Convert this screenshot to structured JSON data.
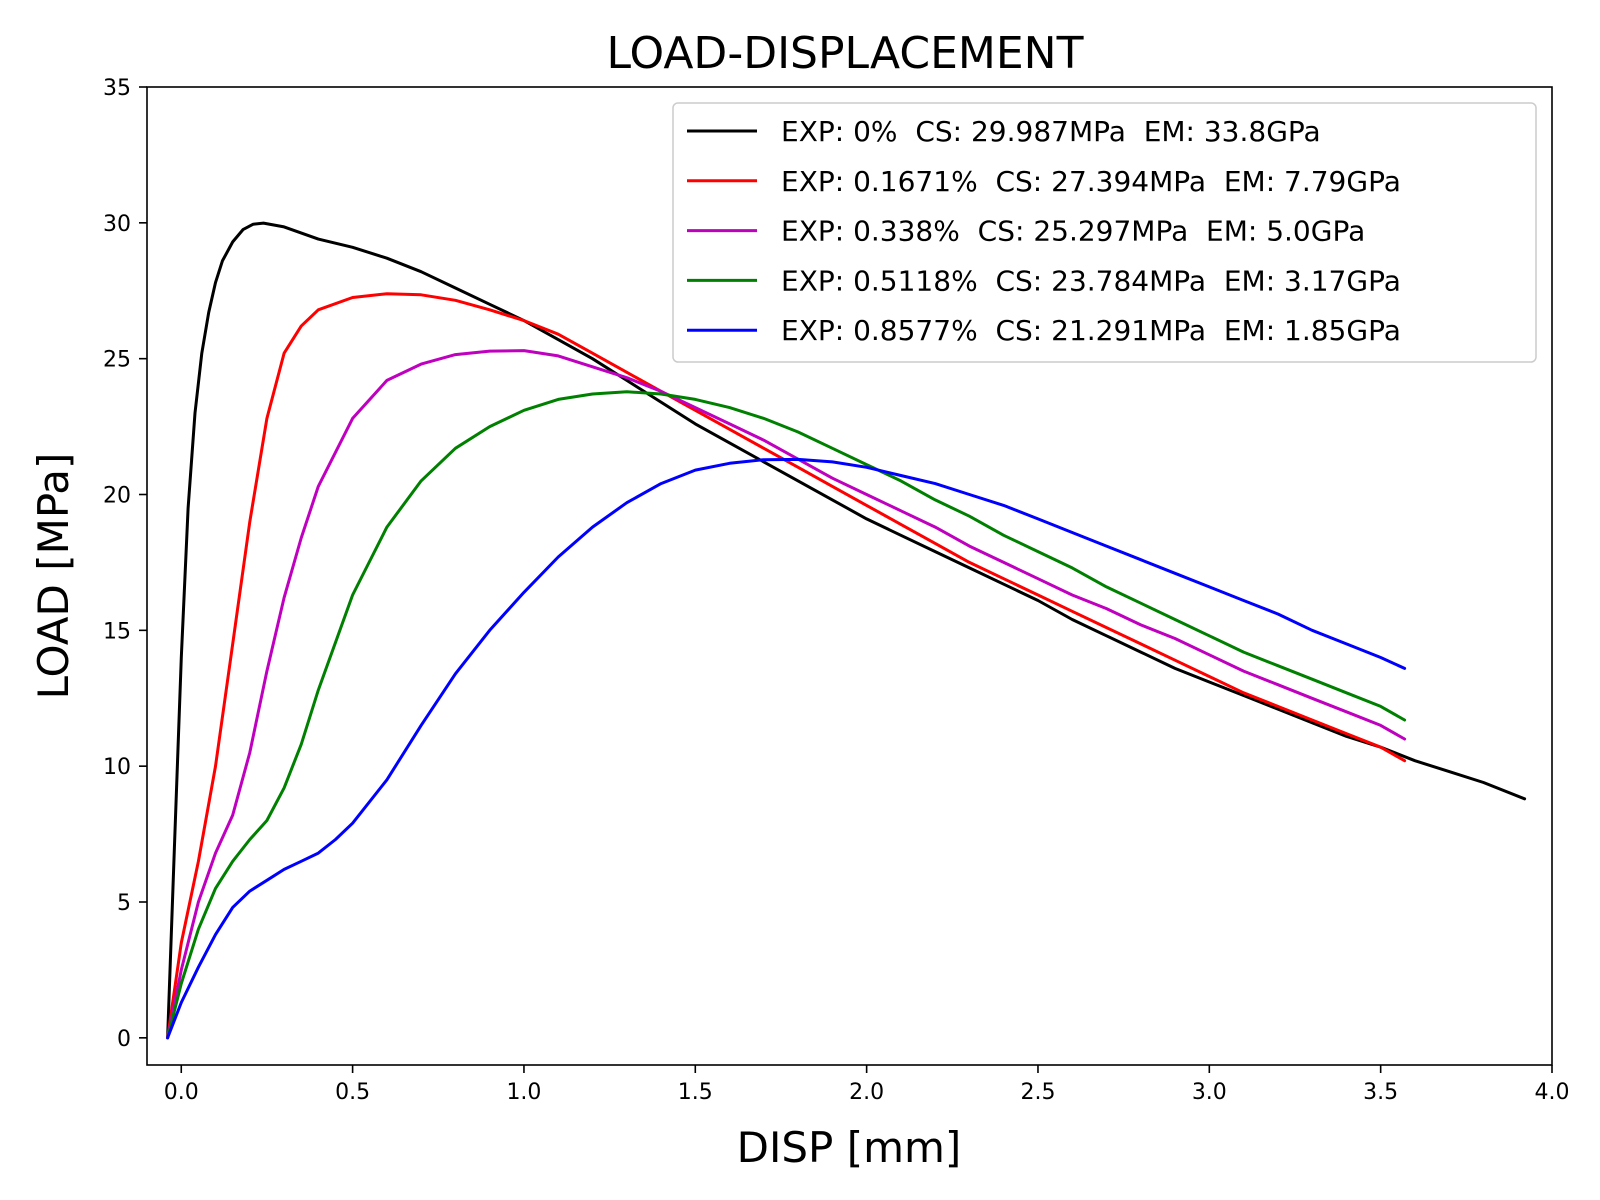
{
  "chart_data": {
    "type": "line",
    "title": "LOAD-DISPLACEMENT",
    "xlabel": "DISP [mm]",
    "ylabel": "LOAD [MPa]",
    "xlim": [
      -0.1,
      4.0
    ],
    "ylim": [
      -1,
      35
    ],
    "xticks": [
      "0.0",
      "0.5",
      "1.0",
      "1.5",
      "2.0",
      "2.5",
      "3.0",
      "3.5",
      "4.0"
    ],
    "yticks": [
      "0",
      "5",
      "10",
      "15",
      "20",
      "25",
      "30",
      "35"
    ],
    "grid": false,
    "legend_position": "top-right",
    "series": [
      {
        "name": "EXP: 0%  CS: 29.987MPa  EM: 33.8GPa",
        "color": "#000000",
        "x": [
          -0.04,
          -0.02,
          0.0,
          0.02,
          0.04,
          0.06,
          0.08,
          0.1,
          0.12,
          0.15,
          0.18,
          0.21,
          0.24,
          0.3,
          0.4,
          0.5,
          0.6,
          0.7,
          0.8,
          0.9,
          1.0,
          1.1,
          1.2,
          1.3,
          1.4,
          1.5,
          1.6,
          1.7,
          1.8,
          1.9,
          2.0,
          2.1,
          2.2,
          2.3,
          2.4,
          2.5,
          2.6,
          2.7,
          2.8,
          2.9,
          3.0,
          3.1,
          3.2,
          3.3,
          3.4,
          3.5,
          3.6,
          3.7,
          3.8,
          3.92
        ],
        "y": [
          0,
          7,
          14,
          19.5,
          23,
          25.2,
          26.7,
          27.8,
          28.6,
          29.3,
          29.75,
          29.95,
          29.99,
          29.85,
          29.4,
          29.1,
          28.7,
          28.2,
          27.6,
          27.0,
          26.4,
          25.7,
          25.0,
          24.2,
          23.4,
          22.6,
          21.9,
          21.2,
          20.5,
          19.8,
          19.1,
          18.5,
          17.9,
          17.3,
          16.7,
          16.1,
          15.4,
          14.8,
          14.2,
          13.6,
          13.1,
          12.6,
          12.1,
          11.6,
          11.1,
          10.7,
          10.2,
          9.8,
          9.4,
          8.8
        ]
      },
      {
        "name": "EXP: 0.1671%  CS: 27.394MPa  EM: 7.79GPa",
        "color": "#ff0000",
        "x": [
          -0.04,
          0.0,
          0.05,
          0.1,
          0.15,
          0.2,
          0.25,
          0.3,
          0.35,
          0.4,
          0.5,
          0.6,
          0.7,
          0.8,
          0.9,
          1.0,
          1.1,
          1.2,
          1.3,
          1.4,
          1.5,
          1.6,
          1.7,
          1.8,
          1.9,
          2.0,
          2.1,
          2.2,
          2.3,
          2.4,
          2.5,
          2.6,
          2.7,
          2.8,
          2.9,
          3.0,
          3.1,
          3.2,
          3.3,
          3.4,
          3.5,
          3.57
        ],
        "y": [
          0,
          3.5,
          6.5,
          10,
          14.5,
          19,
          22.8,
          25.2,
          26.2,
          26.8,
          27.25,
          27.39,
          27.35,
          27.15,
          26.8,
          26.4,
          25.9,
          25.2,
          24.5,
          23.8,
          23.1,
          22.4,
          21.7,
          21.0,
          20.3,
          19.6,
          18.9,
          18.2,
          17.5,
          16.9,
          16.3,
          15.7,
          15.1,
          14.5,
          13.9,
          13.3,
          12.7,
          12.2,
          11.7,
          11.2,
          10.7,
          10.2
        ]
      },
      {
        "name": "EXP: 0.338%  CS: 25.297MPa  EM: 5.0GPa",
        "color": "#bf00bf",
        "x": [
          -0.04,
          0.0,
          0.05,
          0.1,
          0.15,
          0.2,
          0.25,
          0.3,
          0.35,
          0.4,
          0.5,
          0.6,
          0.7,
          0.8,
          0.9,
          1.0,
          1.1,
          1.2,
          1.3,
          1.4,
          1.5,
          1.6,
          1.7,
          1.8,
          1.9,
          2.0,
          2.1,
          2.2,
          2.3,
          2.4,
          2.5,
          2.6,
          2.7,
          2.8,
          2.9,
          3.0,
          3.1,
          3.2,
          3.3,
          3.4,
          3.5,
          3.57
        ],
        "y": [
          0,
          2.5,
          5.0,
          6.8,
          8.2,
          10.5,
          13.5,
          16.2,
          18.4,
          20.3,
          22.8,
          24.2,
          24.8,
          25.15,
          25.28,
          25.297,
          25.1,
          24.7,
          24.3,
          23.8,
          23.2,
          22.6,
          22.0,
          21.3,
          20.6,
          20.0,
          19.4,
          18.8,
          18.1,
          17.5,
          16.9,
          16.3,
          15.8,
          15.2,
          14.7,
          14.1,
          13.5,
          13.0,
          12.5,
          12.0,
          11.5,
          11.0
        ]
      },
      {
        "name": "EXP: 0.5118%  CS: 23.784MPa  EM: 3.17GPa",
        "color": "#008000",
        "x": [
          -0.04,
          0.0,
          0.05,
          0.1,
          0.15,
          0.2,
          0.25,
          0.3,
          0.35,
          0.4,
          0.5,
          0.6,
          0.7,
          0.8,
          0.9,
          1.0,
          1.1,
          1.2,
          1.3,
          1.4,
          1.5,
          1.6,
          1.7,
          1.8,
          1.9,
          2.0,
          2.1,
          2.2,
          2.3,
          2.4,
          2.5,
          2.6,
          2.7,
          2.8,
          2.9,
          3.0,
          3.1,
          3.2,
          3.3,
          3.4,
          3.5,
          3.57
        ],
        "y": [
          0,
          2.0,
          4.0,
          5.5,
          6.5,
          7.3,
          8.0,
          9.2,
          10.8,
          12.8,
          16.3,
          18.8,
          20.5,
          21.7,
          22.5,
          23.1,
          23.5,
          23.7,
          23.784,
          23.7,
          23.5,
          23.2,
          22.8,
          22.3,
          21.7,
          21.1,
          20.5,
          19.8,
          19.2,
          18.5,
          17.9,
          17.3,
          16.6,
          16.0,
          15.4,
          14.8,
          14.2,
          13.7,
          13.2,
          12.7,
          12.2,
          11.7
        ]
      },
      {
        "name": "EXP: 0.8577%  CS: 21.291MPa  EM: 1.85GPa",
        "color": "#0000ff",
        "x": [
          -0.04,
          0.0,
          0.05,
          0.1,
          0.15,
          0.2,
          0.25,
          0.3,
          0.35,
          0.4,
          0.45,
          0.5,
          0.6,
          0.7,
          0.8,
          0.9,
          1.0,
          1.1,
          1.2,
          1.3,
          1.4,
          1.5,
          1.6,
          1.7,
          1.8,
          1.9,
          2.0,
          2.1,
          2.2,
          2.3,
          2.4,
          2.5,
          2.6,
          2.7,
          2.8,
          2.9,
          3.0,
          3.1,
          3.2,
          3.3,
          3.4,
          3.5,
          3.57
        ],
        "y": [
          0,
          1.3,
          2.6,
          3.8,
          4.8,
          5.4,
          5.8,
          6.2,
          6.5,
          6.8,
          7.3,
          7.9,
          9.5,
          11.5,
          13.4,
          15.0,
          16.4,
          17.7,
          18.8,
          19.7,
          20.4,
          20.9,
          21.15,
          21.28,
          21.291,
          21.2,
          21.0,
          20.7,
          20.4,
          20.0,
          19.6,
          19.1,
          18.6,
          18.1,
          17.6,
          17.1,
          16.6,
          16.1,
          15.6,
          15.0,
          14.5,
          14.0,
          13.6
        ]
      }
    ]
  }
}
